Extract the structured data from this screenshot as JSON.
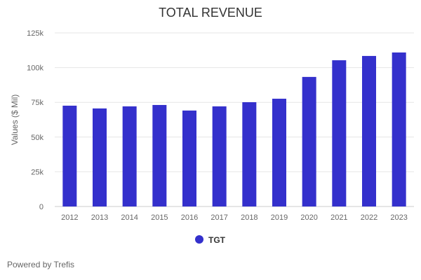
{
  "chart_data": {
    "type": "bar",
    "title": "TOTAL REVENUE",
    "xlabel": "",
    "ylabel": "Values ($ Mil)",
    "categories": [
      "2012",
      "2013",
      "2014",
      "2015",
      "2016",
      "2017",
      "2018",
      "2019",
      "2020",
      "2021",
      "2022",
      "2023"
    ],
    "series": [
      {
        "name": "TGT",
        "values": [
          72.6,
          70.6,
          72.1,
          73.1,
          69.1,
          72.1,
          75.1,
          77.6,
          93.3,
          105.3,
          108.4,
          110.9
        ],
        "color": "#3430cc"
      }
    ],
    "yticks": [
      0,
      25,
      50,
      75,
      100,
      125
    ],
    "ytick_labels": [
      "0",
      "25k",
      "50k",
      "75k",
      "100k",
      "125k"
    ],
    "ylim": [
      0,
      125
    ],
    "grid": true,
    "legend": "bottom-center"
  },
  "footer": "Powered by Trefis"
}
